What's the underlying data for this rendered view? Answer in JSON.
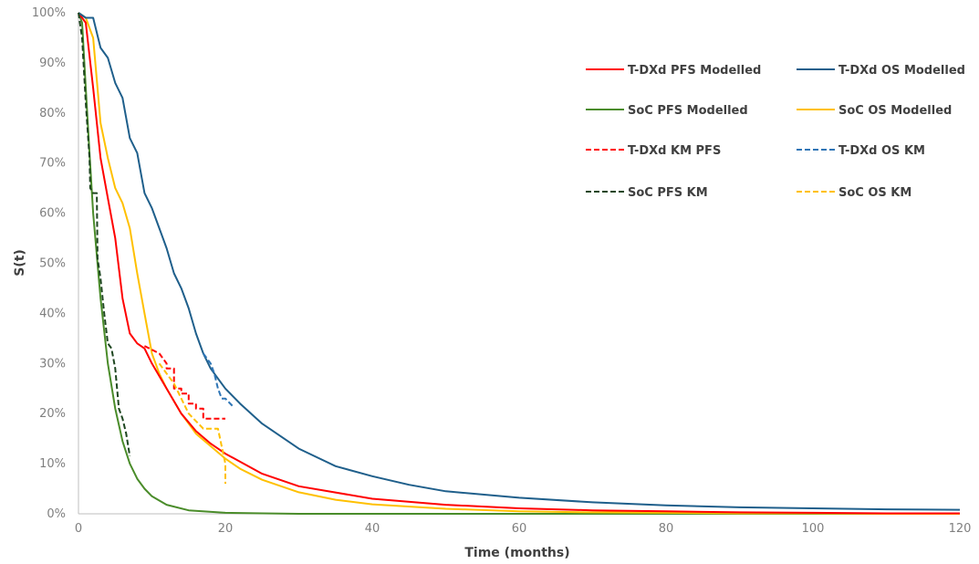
{
  "chart_data": {
    "type": "line",
    "title": "",
    "xlabel": "Time (months)",
    "ylabel": "S(t)",
    "xlim": [
      0,
      120
    ],
    "ylim": [
      0,
      1
    ],
    "x_ticks": [
      0,
      20,
      40,
      60,
      80,
      100,
      120
    ],
    "x_tick_labels": [
      "0",
      "20",
      "40",
      "60",
      "80",
      "100",
      "120"
    ],
    "y_ticks": [
      0,
      0.1,
      0.2,
      0.3,
      0.4,
      0.5,
      0.6,
      0.7,
      0.8,
      0.9,
      1.0
    ],
    "y_tick_labels": [
      "0%",
      "10%",
      "20%",
      "30%",
      "40%",
      "50%",
      "60%",
      "70%",
      "80%",
      "90%",
      "100%"
    ],
    "grid": false,
    "legend_position": "top-right",
    "series": [
      {
        "name": "T-DXd PFS Modelled",
        "color": "#ff0000",
        "style": "solid",
        "x": [
          0,
          1,
          2,
          3,
          4,
          5,
          6,
          7,
          8,
          9,
          10,
          12,
          14,
          16,
          18,
          20,
          25,
          30,
          40,
          50,
          60,
          70,
          80,
          90,
          100,
          110,
          120
        ],
        "y": [
          1.0,
          0.98,
          0.85,
          0.71,
          0.63,
          0.55,
          0.43,
          0.36,
          0.34,
          0.33,
          0.3,
          0.25,
          0.2,
          0.165,
          0.14,
          0.12,
          0.08,
          0.055,
          0.03,
          0.018,
          0.011,
          0.007,
          0.005,
          0.003,
          0.002,
          0.001,
          0.001
        ]
      },
      {
        "name": "T-DXd OS Modelled",
        "color": "#1f5f8b",
        "style": "solid",
        "x": [
          0,
          1,
          2,
          3,
          4,
          5,
          6,
          7,
          8,
          9,
          10,
          11,
          12,
          13,
          14,
          15,
          16,
          17,
          18,
          19,
          20,
          22,
          25,
          30,
          35,
          40,
          45,
          50,
          60,
          70,
          80,
          90,
          100,
          110,
          120
        ],
        "y": [
          1.0,
          0.99,
          0.99,
          0.93,
          0.91,
          0.86,
          0.83,
          0.75,
          0.72,
          0.64,
          0.61,
          0.57,
          0.53,
          0.48,
          0.45,
          0.41,
          0.36,
          0.32,
          0.29,
          0.27,
          0.25,
          0.22,
          0.18,
          0.13,
          0.095,
          0.075,
          0.058,
          0.045,
          0.032,
          0.023,
          0.017,
          0.013,
          0.011,
          0.009,
          0.008
        ]
      },
      {
        "name": "SoC PFS Modelled",
        "color": "#4a8c2a",
        "style": "solid",
        "x": [
          0,
          0.5,
          1,
          1.5,
          2,
          3,
          4,
          5,
          6,
          7,
          8,
          9,
          10,
          12,
          15,
          20,
          25,
          30,
          40,
          60,
          80,
          100,
          120
        ],
        "y": [
          1.0,
          0.98,
          0.85,
          0.72,
          0.6,
          0.43,
          0.3,
          0.21,
          0.145,
          0.1,
          0.07,
          0.05,
          0.035,
          0.018,
          0.007,
          0.002,
          0.001,
          0.0,
          0.0,
          0.0,
          0.0,
          0.0,
          0.0
        ]
      },
      {
        "name": "SoC OS Modelled",
        "color": "#ffc000",
        "style": "solid",
        "x": [
          0,
          1,
          2,
          3,
          4,
          5,
          6,
          7,
          8,
          9,
          10,
          11,
          12,
          14,
          16,
          18,
          20,
          22,
          25,
          30,
          35,
          40,
          50,
          60,
          70,
          80,
          90,
          100,
          110,
          120
        ],
        "y": [
          1.0,
          0.99,
          0.95,
          0.78,
          0.71,
          0.65,
          0.62,
          0.57,
          0.48,
          0.4,
          0.32,
          0.28,
          0.25,
          0.2,
          0.16,
          0.135,
          0.11,
          0.09,
          0.068,
          0.043,
          0.028,
          0.019,
          0.01,
          0.005,
          0.003,
          0.002,
          0.001,
          0.001,
          0.0,
          0.0
        ]
      },
      {
        "name": "T-DXd KM PFS",
        "color": "#ff0000",
        "style": "dashed",
        "x": [
          9,
          11,
          12,
          12,
          13,
          13,
          14,
          14,
          15,
          15,
          16,
          16,
          17,
          17,
          20
        ],
        "y": [
          0.335,
          0.32,
          0.3,
          0.29,
          0.29,
          0.25,
          0.25,
          0.24,
          0.24,
          0.22,
          0.22,
          0.21,
          0.21,
          0.19,
          0.19
        ]
      },
      {
        "name": "T-DXd OS KM",
        "color": "#2e75b6",
        "style": "dashed",
        "x": [
          17,
          18,
          18.5,
          19,
          19.5,
          20,
          21
        ],
        "y": [
          0.32,
          0.3,
          0.28,
          0.25,
          0.23,
          0.23,
          0.215
        ]
      },
      {
        "name": "SoC PFS KM",
        "color": "#1e4620",
        "style": "dashed",
        "x": [
          0,
          0.5,
          1,
          1.5,
          1.6,
          2,
          2.5,
          2.6,
          3,
          3.5,
          4,
          4.5,
          5,
          5.5,
          6,
          6.5,
          7
        ],
        "y": [
          1.0,
          0.95,
          0.82,
          0.71,
          0.65,
          0.64,
          0.64,
          0.51,
          0.47,
          0.4,
          0.34,
          0.33,
          0.29,
          0.21,
          0.19,
          0.16,
          0.115
        ]
      },
      {
        "name": "SoC OS KM",
        "color": "#ffc000",
        "style": "dashed",
        "x": [
          11,
          12,
          13,
          14,
          15,
          17,
          18,
          19,
          20,
          20
        ],
        "y": [
          0.3,
          0.28,
          0.26,
          0.23,
          0.2,
          0.17,
          0.17,
          0.17,
          0.1,
          0.06
        ]
      }
    ]
  }
}
